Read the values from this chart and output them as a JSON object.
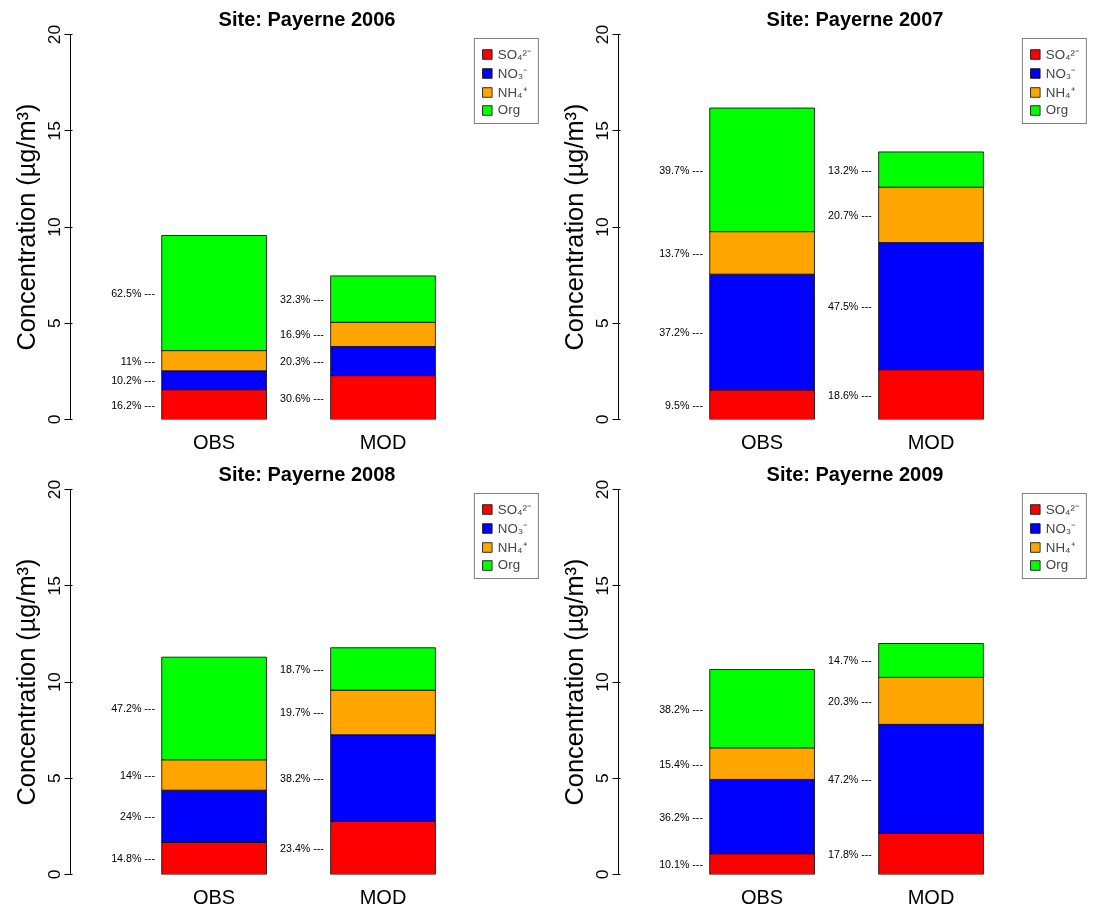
{
  "chart_data": [
    {
      "type": "bar",
      "stacked": true,
      "title": "Site: Payerne 2006",
      "ylabel": "Concentration (µg/m³)",
      "categories": [
        "OBS",
        "MOD"
      ],
      "ylim": [
        0,
        20
      ],
      "yticks": [
        0,
        5,
        10,
        15,
        20
      ],
      "grid": false,
      "legend": "top right",
      "annotations": [
        "16.2% ---",
        "30.6% ---",
        "10.2% ---",
        "20.3% ---",
        "11% ---",
        "16.9% ---",
        "62.5% ---",
        "32.3% ---"
      ],
      "series": [
        {
          "name": "SO₄²⁻",
          "color": "#ff0000",
          "values": [
            1.55,
            2.28
          ]
        },
        {
          "name": "NO₃⁻",
          "color": "#0000ff",
          "values": [
            0.98,
            1.51
          ]
        },
        {
          "name": "NH₄⁺",
          "color": "#ffa500",
          "values": [
            1.05,
            1.26
          ]
        },
        {
          "name": "Org",
          "color": "#00ff00",
          "values": [
            5.98,
            2.41
          ]
        }
      ]
    },
    {
      "type": "bar",
      "stacked": true,
      "title": "Site: Payerne 2007",
      "ylabel": "Concentration (µg/m³)",
      "categories": [
        "OBS",
        "MOD"
      ],
      "ylim": [
        0,
        20
      ],
      "yticks": [
        0,
        5,
        10,
        15,
        20
      ],
      "grid": false,
      "legend": "top right",
      "annotations": [
        "9.5% ---",
        "18.6% ---",
        "37.2% ---",
        "47.5% ---",
        "13.7% ---",
        "20.7% ---",
        "39.7% ---",
        "13.2% ---"
      ],
      "series": [
        {
          "name": "SO₄²⁻",
          "color": "#ff0000",
          "values": [
            1.54,
            2.59
          ]
        },
        {
          "name": "NO₃⁻",
          "color": "#0000ff",
          "values": [
            6.01,
            6.6
          ]
        },
        {
          "name": "NH₄⁺",
          "color": "#ffa500",
          "values": [
            2.21,
            2.88
          ]
        },
        {
          "name": "Org",
          "color": "#00ff00",
          "values": [
            6.42,
            1.83
          ]
        }
      ]
    },
    {
      "type": "bar",
      "stacked": true,
      "title": "Site: Payerne 2008",
      "ylabel": "Concentration (µg/m³)",
      "categories": [
        "OBS",
        "MOD"
      ],
      "ylim": [
        0,
        20
      ],
      "yticks": [
        0,
        5,
        10,
        15,
        20
      ],
      "grid": false,
      "legend": "top right",
      "annotations": [
        "14.8% ---",
        "23.4% ---",
        "24% ---",
        "38.2% ---",
        "14% ---",
        "19.7% ---",
        "47.2% ---",
        "18.7% ---"
      ],
      "series": [
        {
          "name": "SO₄²⁻",
          "color": "#ff0000",
          "values": [
            1.67,
            2.76
          ]
        },
        {
          "name": "NO₃⁻",
          "color": "#0000ff",
          "values": [
            2.71,
            4.5
          ]
        },
        {
          "name": "NH₄⁺",
          "color": "#ffa500",
          "values": [
            1.58,
            2.32
          ]
        },
        {
          "name": "Org",
          "color": "#00ff00",
          "values": [
            5.33,
            2.2
          ]
        }
      ]
    },
    {
      "type": "bar",
      "stacked": true,
      "title": "Site: Payerne 2009",
      "ylabel": "Concentration (µg/m³)",
      "categories": [
        "OBS",
        "MOD"
      ],
      "ylim": [
        0,
        20
      ],
      "yticks": [
        0,
        5,
        10,
        15,
        20
      ],
      "grid": false,
      "legend": "top right",
      "annotations": [
        "10.1% ---",
        "17.8% ---",
        "36.2% ---",
        "47.2% ---",
        "15.4% ---",
        "20.3% ---",
        "38.2% ---",
        "14.7% ---"
      ],
      "series": [
        {
          "name": "SO₄²⁻",
          "color": "#ff0000",
          "values": [
            1.08,
            2.14
          ]
        },
        {
          "name": "NO₃⁻",
          "color": "#0000ff",
          "values": [
            3.86,
            5.66
          ]
        },
        {
          "name": "NH₄⁺",
          "color": "#ffa500",
          "values": [
            1.64,
            2.44
          ]
        },
        {
          "name": "Org",
          "color": "#00ff00",
          "values": [
            4.07,
            1.76
          ]
        }
      ]
    }
  ]
}
